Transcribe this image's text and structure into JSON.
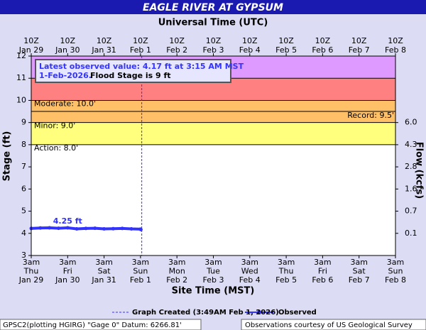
{
  "chart_data": {
    "type": "line",
    "title": "EAGLE RIVER AT GYPSUM",
    "x2label": "Universal Time (UTC)",
    "xlabel": "Site Time (MST)",
    "ylabel": "Stage (ft)",
    "y2label": "Flow (kcfs)",
    "ylim": [
      3,
      12
    ],
    "yticks": [
      3,
      4,
      5,
      6,
      7,
      8,
      9,
      10,
      11,
      12
    ],
    "y2ticks": [
      {
        "value": 0.1,
        "label": "0.1",
        "stage": 4
      },
      {
        "value": 0.7,
        "label": "0.7",
        "stage": 5
      },
      {
        "value": 1.6,
        "label": "1.6",
        "stage": 6
      },
      {
        "value": 2.8,
        "label": "2.8",
        "stage": 7
      },
      {
        "value": 4.3,
        "label": "4.3",
        "stage": 8
      },
      {
        "value": 6,
        "label": "6.0",
        "stage": 9
      }
    ],
    "xlim": [
      "2026-01-29T03:00",
      "2026-02-08T03:00"
    ],
    "xticks": [
      {
        "value": "2026-01-29T03:00",
        "label": [
          "3am",
          "Thu",
          "Jan 29"
        ]
      },
      {
        "value": "2026-01-30T03:00",
        "label": [
          "3am",
          "Fri",
          "Jan 30"
        ]
      },
      {
        "value": "2026-01-31T03:00",
        "label": [
          "3am",
          "Sat",
          "Jan 31"
        ]
      },
      {
        "value": "2026-02-01T03:00",
        "label": [
          "3am",
          "Sun",
          "Feb 1"
        ]
      },
      {
        "value": "2026-02-02T03:00",
        "label": [
          "3am",
          "Mon",
          "Feb 2"
        ]
      },
      {
        "value": "2026-02-03T03:00",
        "label": [
          "3am",
          "Tue",
          "Feb 3"
        ]
      },
      {
        "value": "2026-02-04T03:00",
        "label": [
          "3am",
          "Wed",
          "Feb 4"
        ]
      },
      {
        "value": "2026-02-05T03:00",
        "label": [
          "3am",
          "Thu",
          "Feb 5"
        ]
      },
      {
        "value": "2026-02-06T03:00",
        "label": [
          "3am",
          "Fri",
          "Feb 6"
        ]
      },
      {
        "value": "2026-02-07T03:00",
        "label": [
          "3am",
          "Sat",
          "Feb 7"
        ]
      },
      {
        "value": "2026-02-08T03:00",
        "label": [
          "3am",
          "Sun",
          "Feb 8"
        ]
      }
    ],
    "x2ticks": [
      {
        "value": "2026-01-29T03:00",
        "label": [
          "10Z",
          "Jan 29"
        ]
      },
      {
        "value": "2026-01-30T03:00",
        "label": [
          "10Z",
          "Jan 30"
        ]
      },
      {
        "value": "2026-01-31T03:00",
        "label": [
          "10Z",
          "Jan 31"
        ]
      },
      {
        "value": "2026-02-01T03:00",
        "label": [
          "10Z",
          "Feb 1"
        ]
      },
      {
        "value": "2026-02-02T03:00",
        "label": [
          "10Z",
          "Feb 2"
        ]
      },
      {
        "value": "2026-02-03T03:00",
        "label": [
          "10Z",
          "Feb 3"
        ]
      },
      {
        "value": "2026-02-04T03:00",
        "label": [
          "10Z",
          "Feb 4"
        ]
      },
      {
        "value": "2026-02-05T03:00",
        "label": [
          "10Z",
          "Feb 5"
        ]
      },
      {
        "value": "2026-02-06T03:00",
        "label": [
          "10Z",
          "Feb 6"
        ]
      },
      {
        "value": "2026-02-07T03:00",
        "label": [
          "10Z",
          "Feb 7"
        ]
      },
      {
        "value": "2026-02-08T03:00",
        "label": [
          "10Z",
          "Feb 8"
        ]
      }
    ],
    "flood_categories": [
      {
        "label": "Action: 8.0'",
        "stage": 8,
        "top": 9,
        "color": "#ffff66"
      },
      {
        "label": "Minor: 9.0'",
        "stage": 9,
        "top": 10,
        "color": "#ffb54d"
      },
      {
        "label": "Moderate: 10.0'",
        "stage": 10,
        "top": 11,
        "color": "#ff6a6a"
      },
      {
        "stage": 11,
        "top": 12,
        "color": "#d988ff"
      }
    ],
    "record": {
      "label": "Record: 9.5'",
      "stage": 9.5
    },
    "series": [
      {
        "name": "Observed",
        "color": "#3333ff",
        "x": [
          "2026-01-29T03:00",
          "2026-01-29T09:00",
          "2026-01-29T15:00",
          "2026-01-29T21:00",
          "2026-01-30T03:00",
          "2026-01-30T09:00",
          "2026-01-30T15:00",
          "2026-01-30T21:00",
          "2026-01-31T03:00",
          "2026-01-31T09:00",
          "2026-01-31T15:00",
          "2026-01-31T21:00",
          "2026-02-01T03:00",
          "2026-02-01T03:15"
        ],
        "values": [
          4.22,
          4.24,
          4.25,
          4.23,
          4.25,
          4.2,
          4.22,
          4.23,
          4.2,
          4.21,
          4.22,
          4.2,
          4.19,
          4.17
        ],
        "value_labels": [
          null,
          null,
          null,
          null,
          "4.25 ft",
          null,
          null,
          null,
          null,
          null,
          null,
          null,
          null,
          null
        ]
      }
    ],
    "created": {
      "label": "Graph Created (3:49AM Feb 1, 2026)",
      "x": "2026-02-01T03:49"
    },
    "annotation": {
      "line1": "Latest observed value: 4.17 ft at 3:15 AM MST",
      "line2": "1-Feb-2026.",
      "note": "Flood Stage is 9 ft"
    },
    "footer_left": "GPSC2(plotting HGIRG) \"Gage 0\" Datum: 6266.81'",
    "footer_right": "Observations courtesy of US Geological Survey"
  }
}
